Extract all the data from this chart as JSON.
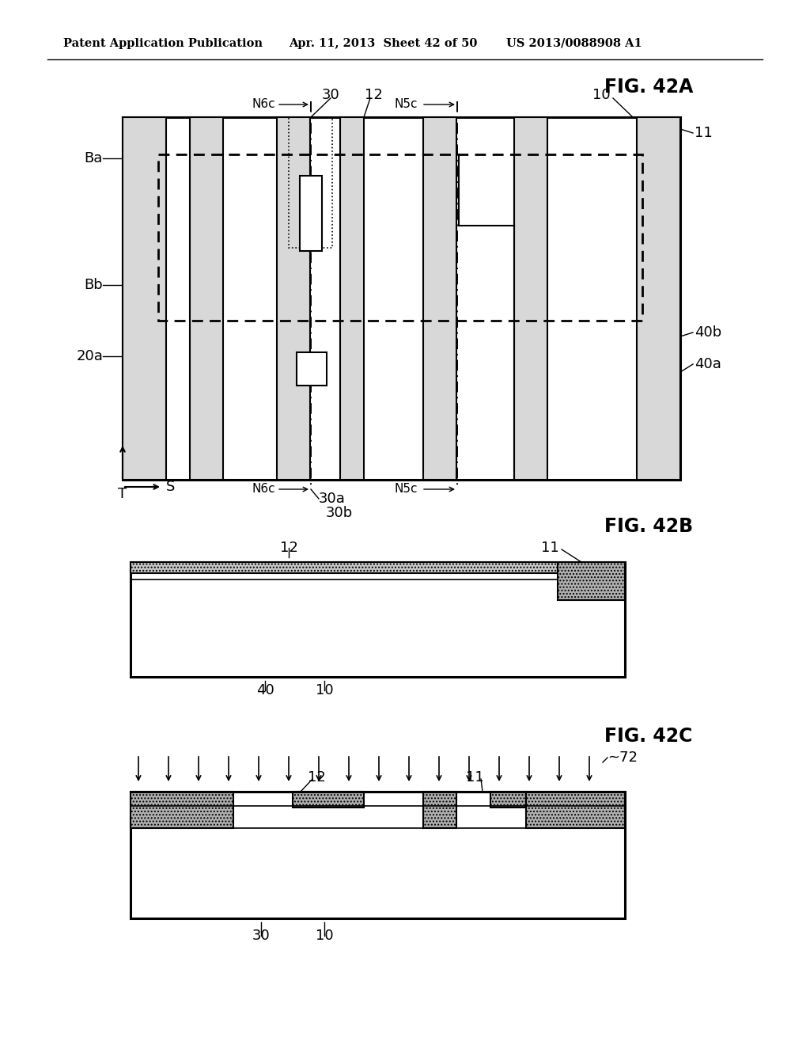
{
  "bg_color": "#ffffff",
  "header_text": "Patent Application Publication",
  "header_date": "Apr. 11, 2013  Sheet 42 of 50",
  "header_patent": "US 2013/0088908 A1",
  "fig42a_title": "FIG. 42A",
  "fig42b_title": "FIG. 42B",
  "fig42c_title": "FIG. 42C",
  "gray_light": "#c8c8c8",
  "gray_medium": "#b0b0b0",
  "gray_dark": "#888888",
  "color_black": "#000000",
  "color_white": "#ffffff"
}
